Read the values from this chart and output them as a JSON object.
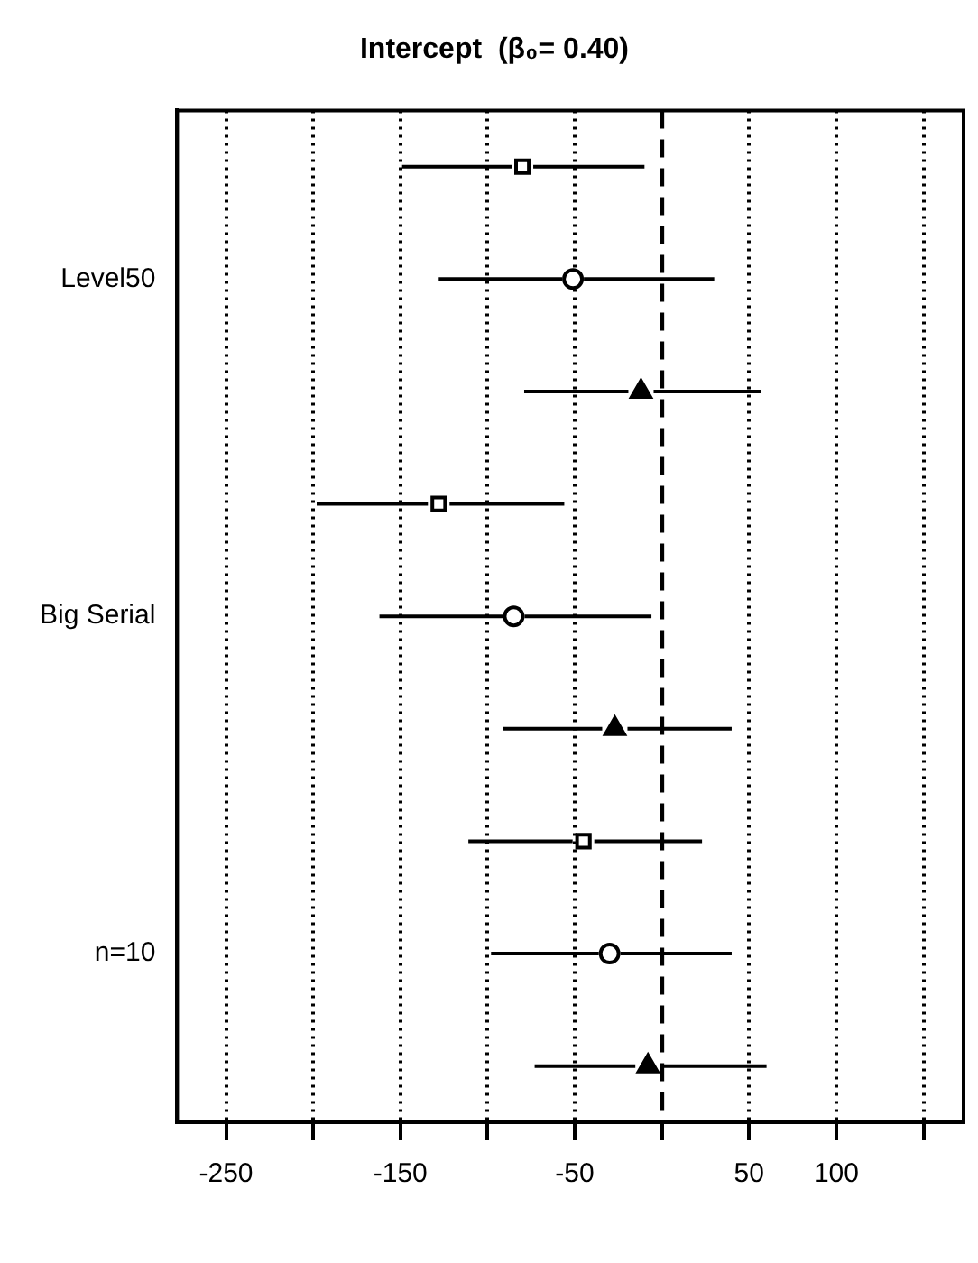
{
  "chart_data": {
    "type": "scatter",
    "title": "Intercept  (β₀= 0.40)",
    "orientation": "horizontal",
    "categories": [
      null,
      "Level50",
      null,
      null,
      "Big Serial",
      null,
      null,
      "n=10",
      null
    ],
    "series": [
      {
        "color": "#000000",
        "marker": "square",
        "values": [
          -80,
          null,
          null,
          -128,
          null,
          null,
          -45,
          null,
          null
        ],
        "errors": [
          [
            -149,
            -10
          ],
          null,
          null,
          [
            -198,
            -56
          ],
          null,
          null,
          [
            -111,
            23
          ],
          null,
          null
        ]
      },
      {
        "color": "#000000",
        "marker": "circle",
        "values": [
          null,
          -51,
          null,
          null,
          -85,
          null,
          null,
          -30,
          null
        ],
        "errors": [
          null,
          [
            -128,
            30
          ],
          null,
          null,
          [
            -162,
            -6
          ],
          null,
          null,
          [
            -98,
            40
          ],
          null
        ]
      },
      {
        "color": "#000000",
        "marker": "triangle",
        "values": [
          null,
          null,
          -12,
          null,
          null,
          -27,
          null,
          null,
          -8
        ],
        "errors": [
          null,
          null,
          [
            -79,
            57
          ],
          null,
          null,
          [
            -91,
            40
          ],
          null,
          null,
          [
            -73,
            60
          ]
        ]
      }
    ],
    "xlim": [
      -278,
      173
    ],
    "xticks": [
      -250,
      {
        "value": -200,
        "label": null
      },
      -150,
      {
        "value": -100,
        "label": null
      },
      -50,
      {
        "value": 0,
        "label": null
      },
      50,
      100,
      {
        "value": 150,
        "label": null
      }
    ],
    "ref_lines": [
      {
        "axis": "x",
        "value": 0,
        "line_style": "dashed"
      }
    ],
    "grid": "x",
    "legend": false
  }
}
